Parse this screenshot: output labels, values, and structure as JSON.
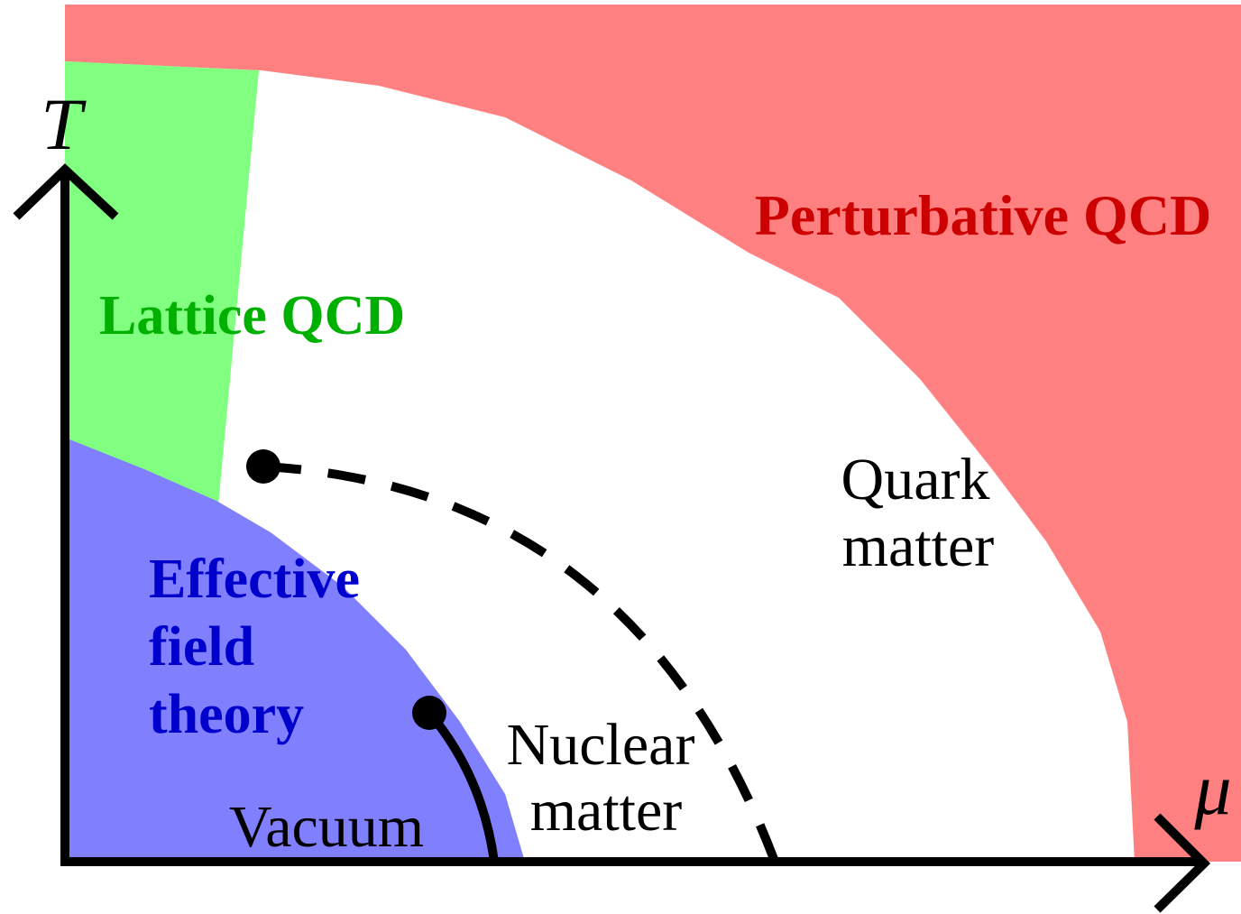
{
  "axes": {
    "y_label": "T",
    "x_label": "μ"
  },
  "regions": {
    "perturbative": {
      "label": "Perturbative QCD"
    },
    "lattice": {
      "label": "Lattice QCD"
    },
    "effective": {
      "lines": [
        "Effective",
        "field",
        "theory"
      ]
    },
    "quark": {
      "lines": [
        "Quark",
        "matter"
      ]
    },
    "nuclear": {
      "lines": [
        "Nuclear",
        "matter"
      ]
    },
    "vacuum": {
      "label": "Vacuum"
    }
  }
}
